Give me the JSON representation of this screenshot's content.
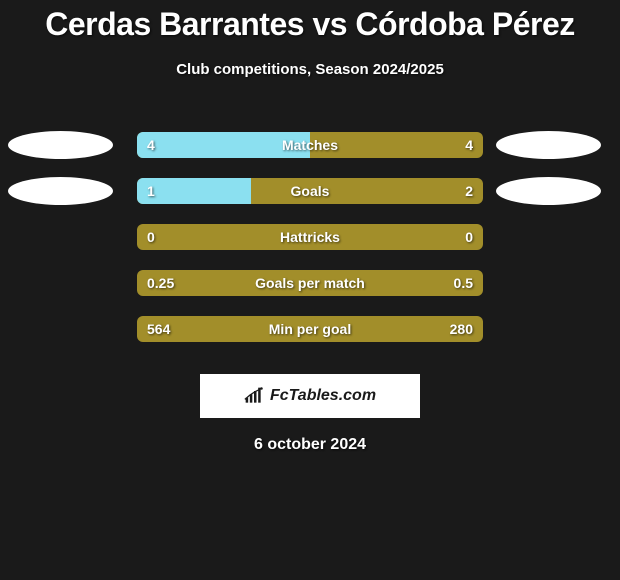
{
  "title": "Cerdas Barrantes vs Córdoba Pérez",
  "subtitle": "Club competitions, Season 2024/2025",
  "date": "6 october 2024",
  "logo_text": "FcTables.com",
  "colors": {
    "background": "#1a1a1a",
    "bar_bg": "#a28e2a",
    "bar_fill": "#8be0f0",
    "ellipse_left": "#ffffff",
    "ellipse_right": "#ffffff",
    "text": "#ffffff"
  },
  "rows": [
    {
      "label": "Matches",
      "left_val": "4",
      "right_val": "4",
      "fill_pct": 50,
      "show_left_ellipse": true,
      "show_right_ellipse": true
    },
    {
      "label": "Goals",
      "left_val": "1",
      "right_val": "2",
      "fill_pct": 33,
      "show_left_ellipse": true,
      "show_right_ellipse": true
    },
    {
      "label": "Hattricks",
      "left_val": "0",
      "right_val": "0",
      "fill_pct": 0,
      "show_left_ellipse": false,
      "show_right_ellipse": false
    },
    {
      "label": "Goals per match",
      "left_val": "0.25",
      "right_val": "0.5",
      "fill_pct": 0,
      "show_left_ellipse": false,
      "show_right_ellipse": false
    },
    {
      "label": "Min per goal",
      "left_val": "564",
      "right_val": "280",
      "fill_pct": 0,
      "show_left_ellipse": false,
      "show_right_ellipse": false
    }
  ]
}
